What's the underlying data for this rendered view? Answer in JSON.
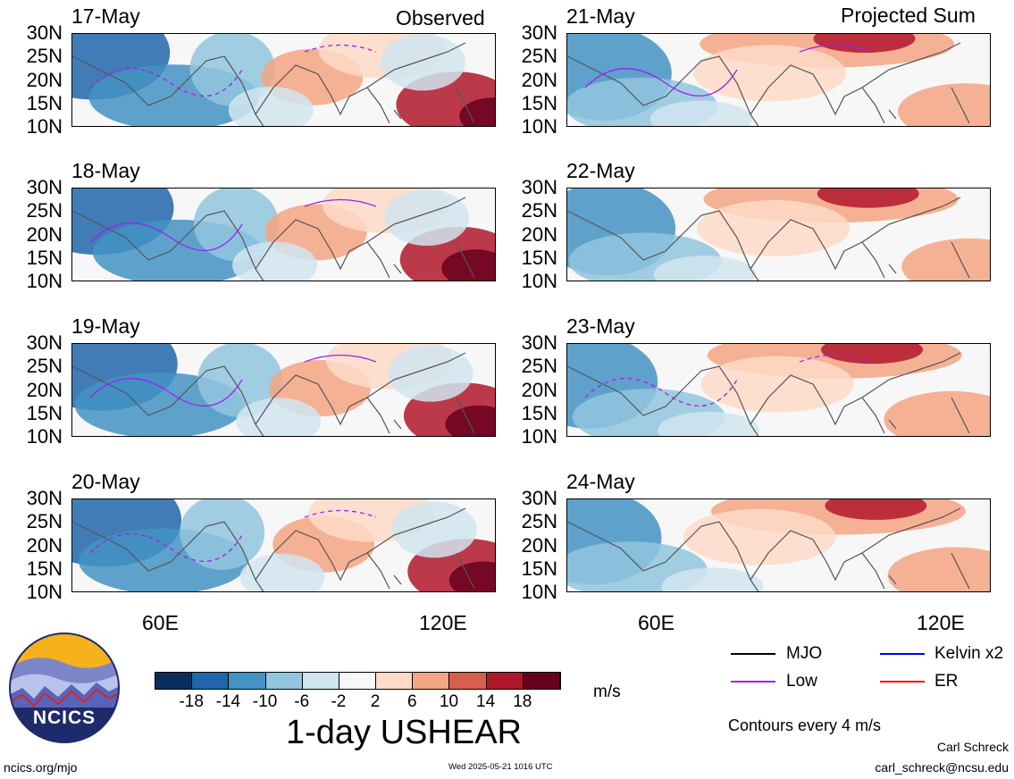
{
  "headers": {
    "left": "Observed",
    "right": "Projected Sum"
  },
  "lat_labels": [
    "30N",
    "25N",
    "20N",
    "15N",
    "10N"
  ],
  "lon_labels": [
    "60E",
    "120E"
  ],
  "panels_left": [
    "17-May",
    "18-May",
    "19-May",
    "20-May"
  ],
  "panels_right": [
    "21-May",
    "22-May",
    "23-May",
    "24-May"
  ],
  "colorbar": {
    "labels": [
      "-18",
      "-14",
      "-10",
      "-6",
      "-2",
      "2",
      "6",
      "10",
      "14",
      "18"
    ],
    "colors": [
      "#0a2e5c",
      "#2166ac",
      "#4393c3",
      "#92c5de",
      "#d1e5f0",
      "#f7f7f7",
      "#fddbc7",
      "#f4a582",
      "#d6604d",
      "#b2182b",
      "#67001f"
    ],
    "units": "m/s"
  },
  "title": "1-day USHEAR",
  "legend": {
    "items": [
      {
        "label": "MJO",
        "color": "#000000"
      },
      {
        "label": "Kelvin x2",
        "color": "#0000ff"
      },
      {
        "label": "Low",
        "color": "#a020f0"
      },
      {
        "label": "ER",
        "color": "#ff0000"
      }
    ],
    "note": "Contours every 4 m/s"
  },
  "logo": {
    "text": "NCICS"
  },
  "footer": {
    "url": "ncics.org/mjo",
    "timestamp": "Wed 2025-05-21 1016 UTC",
    "author": "Carl Schreck",
    "email": "carl_schreck@ncsu.edu"
  },
  "chart_data": {
    "type": "heatmap",
    "title": "1-day USHEAR",
    "variable": "zonal wind shear",
    "units": "m/s",
    "lat_range": [
      10,
      30
    ],
    "lon_ticks": [
      "60E",
      "120E"
    ],
    "observed_dates": [
      "17-May",
      "18-May",
      "19-May",
      "20-May"
    ],
    "projected_dates": [
      "21-May",
      "22-May",
      "23-May",
      "24-May"
    ],
    "contour_levels": [
      -18,
      -14,
      -10,
      -6,
      -2,
      2,
      6,
      10,
      14,
      18
    ]
  }
}
